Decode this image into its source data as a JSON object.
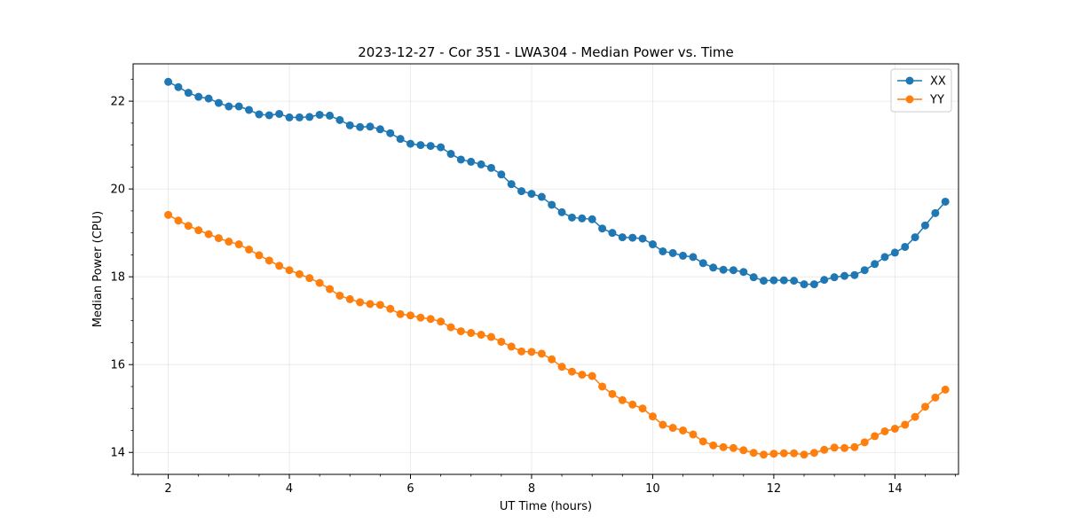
{
  "chart_data": {
    "type": "line",
    "title": "2023-12-27 - Cor 351 - LWA304 - Median Power vs. Time",
    "xlabel": "UT Time (hours)",
    "ylabel": "Median Power (CPU)",
    "xlim": [
      1.42,
      15.05
    ],
    "ylim": [
      13.5,
      22.85
    ],
    "xticks": [
      2,
      4,
      6,
      8,
      10,
      12,
      14
    ],
    "xtick_labels": [
      "2",
      "4",
      "6",
      "8",
      "10",
      "12",
      "14"
    ],
    "yticks": [
      14,
      16,
      18,
      20,
      22
    ],
    "ytick_labels": [
      "14",
      "16",
      "18",
      "20",
      "22"
    ],
    "grid": true,
    "legend_position": "top-right",
    "x": [
      2.0,
      2.167,
      2.333,
      2.5,
      2.667,
      2.833,
      3.0,
      3.167,
      3.333,
      3.5,
      3.667,
      3.833,
      4.0,
      4.167,
      4.333,
      4.5,
      4.667,
      4.833,
      5.0,
      5.167,
      5.333,
      5.5,
      5.667,
      5.833,
      6.0,
      6.167,
      6.333,
      6.5,
      6.667,
      6.833,
      7.0,
      7.167,
      7.333,
      7.5,
      7.667,
      7.833,
      8.0,
      8.167,
      8.333,
      8.5,
      8.667,
      8.833,
      9.0,
      9.167,
      9.333,
      9.5,
      9.667,
      9.833,
      10.0,
      10.167,
      10.333,
      10.5,
      10.667,
      10.833,
      11.0,
      11.167,
      11.333,
      11.5,
      11.667,
      11.833,
      12.0,
      12.167,
      12.333,
      12.5,
      12.667,
      12.833,
      13.0,
      13.167,
      13.333,
      13.5,
      13.667,
      13.833,
      14.0,
      14.167,
      14.333,
      14.5,
      14.667,
      14.833
    ],
    "series": [
      {
        "name": "XX",
        "color": "#1f77b4",
        "values": [
          22.44,
          22.32,
          22.19,
          22.1,
          22.06,
          21.96,
          21.88,
          21.88,
          21.8,
          21.7,
          21.68,
          21.71,
          21.63,
          21.63,
          21.64,
          21.69,
          21.67,
          21.57,
          21.45,
          21.41,
          21.42,
          21.36,
          21.27,
          21.14,
          21.03,
          21.0,
          20.98,
          20.95,
          20.8,
          20.67,
          20.62,
          20.56,
          20.48,
          20.33,
          20.11,
          19.95,
          19.89,
          19.82,
          19.64,
          19.47,
          19.35,
          19.33,
          19.31,
          19.1,
          19.0,
          18.9,
          18.89,
          18.87,
          18.74,
          18.58,
          18.54,
          18.48,
          18.45,
          18.31,
          18.21,
          18.16,
          18.15,
          18.11,
          17.99,
          17.91,
          17.92,
          17.92,
          17.91,
          17.83,
          17.83,
          17.93,
          17.99,
          18.02,
          18.04,
          18.15,
          18.29,
          18.45,
          18.55,
          18.68,
          18.9,
          19.17,
          19.45,
          19.71
        ]
      },
      {
        "name": "YY",
        "color": "#ff7f0e",
        "values": [
          19.41,
          19.28,
          19.16,
          19.06,
          18.97,
          18.88,
          18.8,
          18.74,
          18.62,
          18.49,
          18.37,
          18.25,
          18.15,
          18.06,
          17.97,
          17.86,
          17.72,
          17.57,
          17.49,
          17.42,
          17.38,
          17.36,
          17.27,
          17.15,
          17.12,
          17.07,
          17.04,
          16.98,
          16.85,
          16.76,
          16.72,
          16.68,
          16.63,
          16.52,
          16.41,
          16.3,
          16.29,
          16.25,
          16.12,
          15.95,
          15.84,
          15.77,
          15.74,
          15.5,
          15.33,
          15.19,
          15.09,
          15.0,
          14.82,
          14.63,
          14.56,
          14.5,
          14.41,
          14.25,
          14.16,
          14.12,
          14.1,
          14.05,
          13.99,
          13.95,
          13.97,
          13.98,
          13.98,
          13.95,
          13.99,
          14.06,
          14.11,
          14.1,
          14.12,
          14.23,
          14.37,
          14.48,
          14.54,
          14.63,
          14.81,
          15.04,
          15.25,
          15.43
        ]
      }
    ]
  }
}
